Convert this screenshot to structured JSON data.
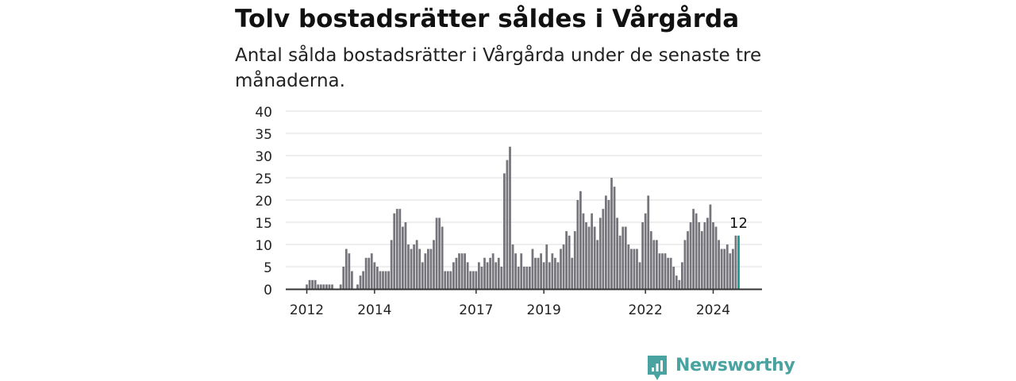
{
  "title": "Tolv bostadsrätter såldes i Vårgårda",
  "subtitle": "Antal sålda bostadsrätter i Vårgårda under de senaste tre månaderna.",
  "brand": {
    "name": "Newsworthy",
    "color": "#49a3a0"
  },
  "chart_data": {
    "type": "bar",
    "ylim": [
      0,
      40
    ],
    "yticks": [
      "0",
      "5",
      "10",
      "15",
      "20",
      "25",
      "30",
      "35",
      "40"
    ],
    "xticks": [
      "2012",
      "2014",
      "2017",
      "2019",
      "2022",
      "2024"
    ],
    "grid": true,
    "bar_color": "#76757b",
    "highlight_color": "#1a9c94",
    "annotation": "12",
    "values": [
      1,
      2,
      2,
      2,
      1,
      1,
      1,
      1,
      1,
      1,
      0,
      0,
      1,
      5,
      9,
      8,
      4,
      0,
      1,
      3,
      4,
      7,
      7,
      8,
      6,
      5,
      4,
      4,
      4,
      4,
      11,
      17,
      18,
      18,
      14,
      15,
      10,
      9,
      10,
      11,
      9,
      6,
      8,
      9,
      9,
      11,
      16,
      16,
      14,
      4,
      4,
      4,
      6,
      7,
      8,
      8,
      8,
      6,
      4,
      4,
      4,
      6,
      5,
      7,
      6,
      7,
      8,
      6,
      7,
      5,
      26,
      29,
      32,
      10,
      8,
      5,
      8,
      5,
      5,
      5,
      9,
      7,
      7,
      8,
      6,
      10,
      6,
      8,
      7,
      6,
      9,
      10,
      13,
      12,
      7,
      13,
      20,
      22,
      17,
      15,
      14,
      17,
      14,
      11,
      16,
      18,
      21,
      20,
      25,
      23,
      16,
      12,
      14,
      14,
      10,
      9,
      9,
      9,
      6,
      15,
      17,
      21,
      13,
      11,
      11,
      8,
      8,
      8,
      7,
      7,
      5,
      3,
      2,
      6,
      11,
      13,
      15,
      18,
      17,
      15,
      13,
      15,
      16,
      19,
      15,
      14,
      11,
      9,
      9,
      10,
      8,
      9,
      12,
      12
    ]
  }
}
